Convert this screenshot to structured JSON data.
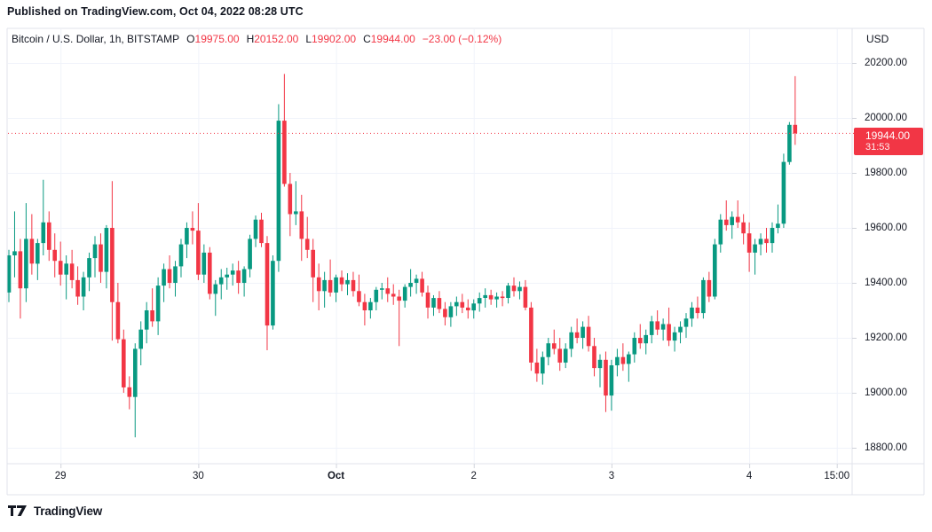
{
  "published_bar": {
    "text": "Published on TradingView.com, Oct 04, 2022 08:28 UTC"
  },
  "legend": {
    "symbol": "Bitcoin / U.S. Dollar, 1h, BITSTAMP",
    "ohlc": [
      {
        "label": "O",
        "value": "19975.00"
      },
      {
        "label": "H",
        "value": "20152.00"
      },
      {
        "label": "L",
        "value": "19902.00"
      },
      {
        "label": "C",
        "value": "19944.00"
      }
    ],
    "change": "−23.00 (−0.12%)"
  },
  "price_axis": {
    "currency": "USD",
    "labels": [
      {
        "price": 20200,
        "text": "20200.00"
      },
      {
        "price": 20000,
        "text": "20000.00"
      },
      {
        "price": 19800,
        "text": "19800.00"
      },
      {
        "price": 19600,
        "text": "19600.00"
      },
      {
        "price": 19400,
        "text": "19400.00"
      },
      {
        "price": 19200,
        "text": "19200.00"
      },
      {
        "price": 19000,
        "text": "19000.00"
      },
      {
        "price": 18800,
        "text": "18800.00"
      }
    ],
    "last_price_label": "19944.00",
    "countdown": "31:53"
  },
  "time_axis": {
    "labels": [
      {
        "text": "29",
        "i": 9
      },
      {
        "text": "30",
        "i": 33
      },
      {
        "text": "Oct",
        "i": 57,
        "bold": true
      },
      {
        "text": "2",
        "i": 81
      },
      {
        "text": "3",
        "i": 105
      },
      {
        "text": "4",
        "i": 129
      },
      {
        "text": "15:00",
        "i": 144.25
      }
    ]
  },
  "footer": {
    "brand": "TradingView"
  },
  "colors": {
    "up": "#089981",
    "down": "#F23645",
    "grid": "#F0F3FA",
    "border": "#E0E3EB",
    "tick": "#D1D4DC",
    "text": "#131722",
    "value_down": "#F23645",
    "badge_bg": "#F23645",
    "price_line": "#F23645"
  },
  "chart_data": {
    "type": "candlestick",
    "title": "Bitcoin / U.S. Dollar",
    "exchange": "BITSTAMP",
    "interval": "1h",
    "currency": "USD",
    "last_candle": {
      "open": 19975,
      "high": 20152,
      "low": 19902,
      "close": 19944,
      "change": -23,
      "change_pct": -0.12
    },
    "last_price": 19944,
    "countdown": "31:53",
    "y_axis": {
      "min": 18800,
      "max": 20200,
      "step": 200
    },
    "x_start": "Sep 28 15:00",
    "x_end": "Oct 04 08:00",
    "candles": [
      [
        19365,
        19520,
        19330,
        19500
      ],
      [
        19500,
        19660,
        19420,
        19515
      ],
      [
        19515,
        19560,
        19270,
        19380
      ],
      [
        19380,
        19690,
        19330,
        19560
      ],
      [
        19560,
        19650,
        19430,
        19470
      ],
      [
        19470,
        19560,
        19410,
        19545
      ],
      [
        19545,
        19775,
        19500,
        19620
      ],
      [
        19620,
        19660,
        19480,
        19520
      ],
      [
        19520,
        19580,
        19420,
        19480
      ],
      [
        19480,
        19550,
        19390,
        19430
      ],
      [
        19430,
        19500,
        19340,
        19470
      ],
      [
        19470,
        19520,
        19380,
        19410
      ],
      [
        19410,
        19460,
        19320,
        19350
      ],
      [
        19350,
        19440,
        19300,
        19420
      ],
      [
        19420,
        19510,
        19370,
        19490
      ],
      [
        19490,
        19570,
        19420,
        19540
      ],
      [
        19540,
        19580,
        19400,
        19440
      ],
      [
        19440,
        19610,
        19380,
        19600
      ],
      [
        19600,
        19770,
        19190,
        19330
      ],
      [
        19330,
        19400,
        19180,
        19195
      ],
      [
        19195,
        19230,
        19000,
        19020
      ],
      [
        19020,
        19060,
        18940,
        18985
      ],
      [
        18985,
        19180,
        18838,
        19160
      ],
      [
        19160,
        19260,
        19100,
        19230
      ],
      [
        19230,
        19330,
        19180,
        19300
      ],
      [
        19300,
        19380,
        19240,
        19260
      ],
      [
        19260,
        19420,
        19210,
        19390
      ],
      [
        19390,
        19470,
        19330,
        19450
      ],
      [
        19450,
        19500,
        19380,
        19400
      ],
      [
        19400,
        19480,
        19350,
        19460
      ],
      [
        19460,
        19560,
        19420,
        19540
      ],
      [
        19540,
        19620,
        19490,
        19600
      ],
      [
        19600,
        19660,
        19540,
        19590
      ],
      [
        19590,
        19690,
        19410,
        19430
      ],
      [
        19430,
        19540,
        19400,
        19510
      ],
      [
        19510,
        19530,
        19340,
        19360
      ],
      [
        19360,
        19410,
        19280,
        19395
      ],
      [
        19395,
        19450,
        19340,
        19420
      ],
      [
        19420,
        19455,
        19375,
        19430
      ],
      [
        19430,
        19470,
        19390,
        19445
      ],
      [
        19445,
        19480,
        19360,
        19400
      ],
      [
        19400,
        19460,
        19350,
        19450
      ],
      [
        19450,
        19575,
        19420,
        19560
      ],
      [
        19560,
        19645,
        19530,
        19630
      ],
      [
        19630,
        19655,
        19530,
        19545
      ],
      [
        19545,
        19570,
        19155,
        19245
      ],
      [
        19245,
        19500,
        19230,
        19480
      ],
      [
        19480,
        20050,
        19440,
        19990
      ],
      [
        19990,
        20160,
        19750,
        19760
      ],
      [
        19760,
        19800,
        19570,
        19650
      ],
      [
        19650,
        19770,
        19610,
        19660
      ],
      [
        19660,
        19720,
        19480,
        19560
      ],
      [
        19560,
        19640,
        19490,
        19520
      ],
      [
        19520,
        19560,
        19330,
        19420
      ],
      [
        19420,
        19470,
        19300,
        19370
      ],
      [
        19370,
        19440,
        19310,
        19410
      ],
      [
        19410,
        19485,
        19350,
        19365
      ],
      [
        19365,
        19430,
        19330,
        19420
      ],
      [
        19420,
        19445,
        19370,
        19395
      ],
      [
        19395,
        19435,
        19355,
        19410
      ],
      [
        19410,
        19440,
        19350,
        19370
      ],
      [
        19370,
        19430,
        19315,
        19330
      ],
      [
        19330,
        19360,
        19245,
        19300
      ],
      [
        19300,
        19345,
        19270,
        19330
      ],
      [
        19330,
        19385,
        19300,
        19375
      ],
      [
        19375,
        19400,
        19340,
        19380
      ],
      [
        19380,
        19420,
        19330,
        19360
      ],
      [
        19360,
        19395,
        19320,
        19350
      ],
      [
        19350,
        19375,
        19170,
        19335
      ],
      [
        19335,
        19395,
        19310,
        19385
      ],
      [
        19385,
        19450,
        19350,
        19400
      ],
      [
        19400,
        19430,
        19360,
        19415
      ],
      [
        19415,
        19440,
        19350,
        19365
      ],
      [
        19365,
        19390,
        19270,
        19310
      ],
      [
        19310,
        19355,
        19280,
        19345
      ],
      [
        19345,
        19370,
        19290,
        19305
      ],
      [
        19305,
        19330,
        19245,
        19275
      ],
      [
        19275,
        19330,
        19240,
        19315
      ],
      [
        19315,
        19350,
        19280,
        19330
      ],
      [
        19330,
        19360,
        19290,
        19310
      ],
      [
        19310,
        19340,
        19270,
        19300
      ],
      [
        19300,
        19340,
        19270,
        19325
      ],
      [
        19325,
        19365,
        19295,
        19345
      ],
      [
        19345,
        19380,
        19310,
        19355
      ],
      [
        19355,
        19375,
        19320,
        19340
      ],
      [
        19340,
        19365,
        19310,
        19350
      ],
      [
        19350,
        19370,
        19315,
        19345
      ],
      [
        19345,
        19400,
        19325,
        19390
      ],
      [
        19390,
        19420,
        19350,
        19370
      ],
      [
        19370,
        19405,
        19340,
        19385
      ],
      [
        19385,
        19410,
        19300,
        19310
      ],
      [
        19310,
        19330,
        19080,
        19110
      ],
      [
        19110,
        19160,
        19040,
        19070
      ],
      [
        19070,
        19150,
        19030,
        19130
      ],
      [
        19130,
        19200,
        19100,
        19180
      ],
      [
        19180,
        19230,
        19140,
        19160
      ],
      [
        19160,
        19200,
        19080,
        19110
      ],
      [
        19110,
        19180,
        19090,
        19160
      ],
      [
        19160,
        19240,
        19130,
        19220
      ],
      [
        19220,
        19270,
        19180,
        19200
      ],
      [
        19200,
        19260,
        19160,
        19240
      ],
      [
        19240,
        19280,
        19150,
        19170
      ],
      [
        19170,
        19200,
        19060,
        19090
      ],
      [
        19090,
        19140,
        19020,
        19120
      ],
      [
        19120,
        19150,
        18930,
        18990
      ],
      [
        18990,
        19120,
        18935,
        19100
      ],
      [
        19100,
        19160,
        19060,
        19130
      ],
      [
        19130,
        19180,
        19080,
        19105
      ],
      [
        19105,
        19150,
        19040,
        19140
      ],
      [
        19140,
        19220,
        19110,
        19200
      ],
      [
        19200,
        19250,
        19160,
        19180
      ],
      [
        19180,
        19230,
        19140,
        19210
      ],
      [
        19210,
        19280,
        19180,
        19260
      ],
      [
        19260,
        19300,
        19210,
        19230
      ],
      [
        19230,
        19270,
        19190,
        19250
      ],
      [
        19250,
        19310,
        19170,
        19190
      ],
      [
        19190,
        19240,
        19150,
        19220
      ],
      [
        19220,
        19260,
        19180,
        19240
      ],
      [
        19240,
        19290,
        19200,
        19270
      ],
      [
        19270,
        19330,
        19240,
        19310
      ],
      [
        19310,
        19350,
        19270,
        19290
      ],
      [
        19290,
        19420,
        19270,
        19410
      ],
      [
        19410,
        19440,
        19330,
        19350
      ],
      [
        19350,
        19560,
        19340,
        19540
      ],
      [
        19540,
        19650,
        19510,
        19630
      ],
      [
        19630,
        19700,
        19590,
        19610
      ],
      [
        19610,
        19660,
        19560,
        19640
      ],
      [
        19640,
        19700,
        19600,
        19620
      ],
      [
        19620,
        19650,
        19540,
        19580
      ],
      [
        19580,
        19620,
        19440,
        19510
      ],
      [
        19510,
        19560,
        19430,
        19540
      ],
      [
        19540,
        19580,
        19500,
        19560
      ],
      [
        19560,
        19600,
        19510,
        19545
      ],
      [
        19545,
        19620,
        19510,
        19600
      ],
      [
        19600,
        19685,
        19580,
        19615
      ],
      [
        19615,
        19870,
        19600,
        19840
      ],
      [
        19840,
        19985,
        19830,
        19975
      ],
      [
        19975,
        20152,
        19902,
        19944
      ]
    ]
  }
}
